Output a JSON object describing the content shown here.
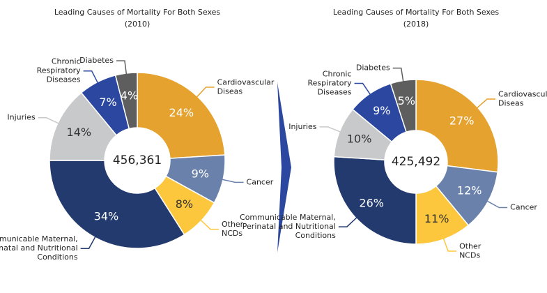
{
  "chart_data": [
    {
      "type": "pie",
      "title": "Leading Causes of Mortality For Both Sexes",
      "subtitle": "(2010)",
      "center_label": "456,361",
      "categories": [
        "Cardiovascular\nDiseas",
        "Cancer",
        "Other\nNCDs",
        "Communicable Maternal,\nPerinatal and Nutritional\nConditions",
        "Injuries",
        "Chronic\nRespiratory\nDiseases",
        "Diabetes"
      ],
      "values": [
        24,
        9,
        8,
        34,
        14,
        7,
        4
      ],
      "value_labels": [
        "24%",
        "9%",
        "8%",
        "34%",
        "14%",
        "7%",
        "4%"
      ],
      "colors": [
        "#e5a22e",
        "#6a82ab",
        "#fdc73d",
        "#233a6f",
        "#c8c9cb",
        "#2b47a0",
        "#5e5e5e"
      ]
    },
    {
      "type": "pie",
      "title": "Leading Causes of Mortality For Both Sexes",
      "subtitle": "(2018)",
      "center_label": "425,492",
      "categories": [
        "Cardiovascular\nDiseas",
        "Cancer",
        "Other\nNCDs",
        "Communicable Maternal,\nPerinatal and Nutritional\nConditions",
        "Injuries",
        "Chronic\nRespiratory\nDiseases",
        "Diabetes"
      ],
      "values": [
        27,
        12,
        11,
        26,
        10,
        9,
        5
      ],
      "value_labels": [
        "27%",
        "12%",
        "11%",
        "26%",
        "10%",
        "9%",
        "5%"
      ],
      "colors": [
        "#e5a22e",
        "#6a82ab",
        "#fdc73d",
        "#233a6f",
        "#c8c9cb",
        "#2b47a0",
        "#5e5e5e"
      ]
    }
  ]
}
